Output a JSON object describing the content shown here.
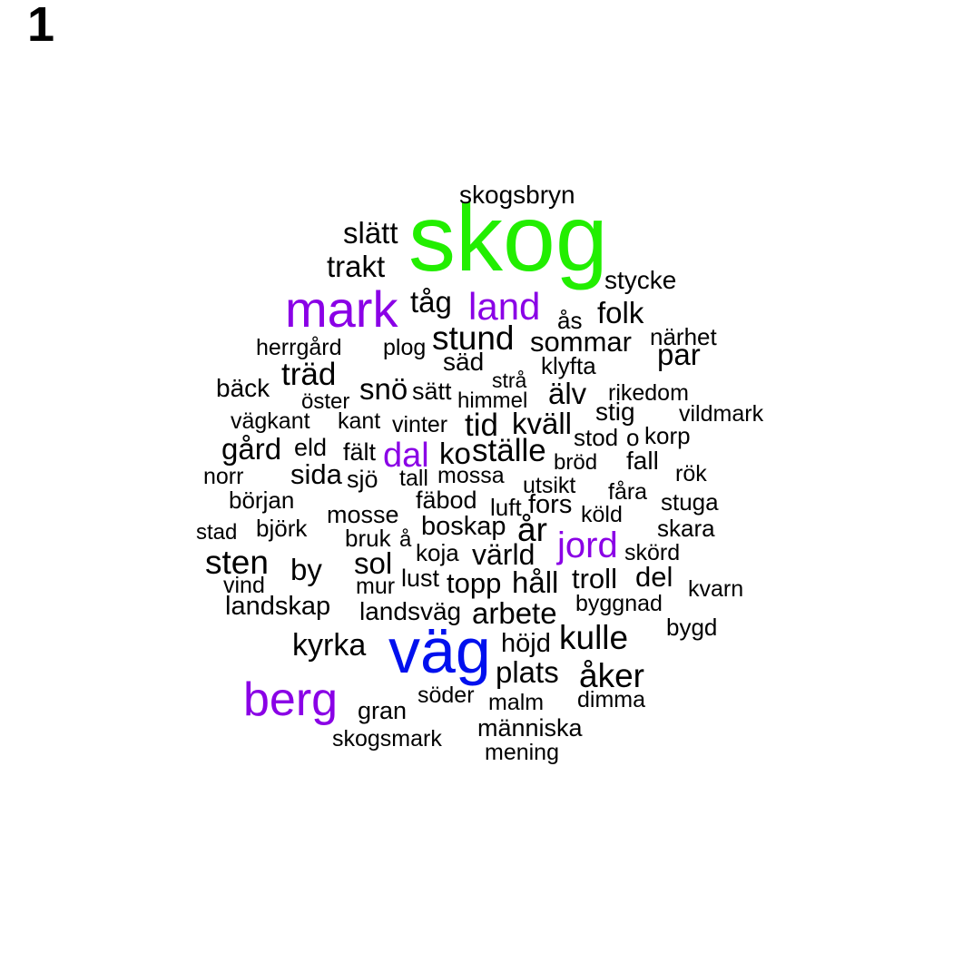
{
  "panel_label": "1",
  "colors": {
    "default": "#000000",
    "green": "#22ee00",
    "purple": "#8a00e6",
    "blue": "#0010ee"
  },
  "words": [
    {
      "text": "skog",
      "weight": 10,
      "color": "green"
    },
    {
      "text": "väg",
      "weight": 8,
      "color": "blue"
    },
    {
      "text": "mark",
      "weight": 6,
      "color": "purple"
    },
    {
      "text": "berg",
      "weight": 6,
      "color": "purple"
    },
    {
      "text": "land",
      "weight": 5,
      "color": "purple"
    },
    {
      "text": "jord",
      "weight": 5,
      "color": "purple"
    },
    {
      "text": "dal",
      "weight": 5,
      "color": "purple"
    },
    {
      "text": "skogsbryn",
      "weight": 2
    },
    {
      "text": "slätt",
      "weight": 3
    },
    {
      "text": "trakt",
      "weight": 3
    },
    {
      "text": "stycke",
      "weight": 2
    },
    {
      "text": "tåg",
      "weight": 3
    },
    {
      "text": "folk",
      "weight": 3
    },
    {
      "text": "ås",
      "weight": 2
    },
    {
      "text": "stund",
      "weight": 3
    },
    {
      "text": "sommar",
      "weight": 3
    },
    {
      "text": "närhet",
      "weight": 2
    },
    {
      "text": "herrgård",
      "weight": 2
    },
    {
      "text": "plog",
      "weight": 2
    },
    {
      "text": "säd",
      "weight": 2
    },
    {
      "text": "par",
      "weight": 3
    },
    {
      "text": "träd",
      "weight": 3
    },
    {
      "text": "klyfta",
      "weight": 2
    },
    {
      "text": "bäck",
      "weight": 2
    },
    {
      "text": "strå",
      "weight": 2
    },
    {
      "text": "snö",
      "weight": 3
    },
    {
      "text": "sätt",
      "weight": 2
    },
    {
      "text": "älv",
      "weight": 3
    },
    {
      "text": "rikedom",
      "weight": 2
    },
    {
      "text": "öster",
      "weight": 2
    },
    {
      "text": "himmel",
      "weight": 2
    },
    {
      "text": "stig",
      "weight": 2
    },
    {
      "text": "vildmark",
      "weight": 2
    },
    {
      "text": "vägkant",
      "weight": 2
    },
    {
      "text": "kant",
      "weight": 2
    },
    {
      "text": "vinter",
      "weight": 2
    },
    {
      "text": "tid",
      "weight": 3
    },
    {
      "text": "kväll",
      "weight": 3
    },
    {
      "text": "stod",
      "weight": 2
    },
    {
      "text": "o",
      "weight": 2
    },
    {
      "text": "korp",
      "weight": 2
    },
    {
      "text": "gård",
      "weight": 3
    },
    {
      "text": "eld",
      "weight": 2
    },
    {
      "text": "fält",
      "weight": 2
    },
    {
      "text": "ko",
      "weight": 3
    },
    {
      "text": "ställe",
      "weight": 3
    },
    {
      "text": "bröd",
      "weight": 2
    },
    {
      "text": "fall",
      "weight": 2
    },
    {
      "text": "norr",
      "weight": 2
    },
    {
      "text": "sida",
      "weight": 3
    },
    {
      "text": "sjö",
      "weight": 2
    },
    {
      "text": "tall",
      "weight": 2
    },
    {
      "text": "mossa",
      "weight": 2
    },
    {
      "text": "utsikt",
      "weight": 2
    },
    {
      "text": "rök",
      "weight": 2
    },
    {
      "text": "början",
      "weight": 2
    },
    {
      "text": "fäbod",
      "weight": 2
    },
    {
      "text": "fåra",
      "weight": 2
    },
    {
      "text": "luft",
      "weight": 2
    },
    {
      "text": "fors",
      "weight": 2
    },
    {
      "text": "stuga",
      "weight": 2
    },
    {
      "text": "mosse",
      "weight": 2
    },
    {
      "text": "köld",
      "weight": 2
    },
    {
      "text": "stad",
      "weight": 2
    },
    {
      "text": "björk",
      "weight": 2
    },
    {
      "text": "boskap",
      "weight": 2
    },
    {
      "text": "år",
      "weight": 3
    },
    {
      "text": "skara",
      "weight": 2
    },
    {
      "text": "bruk",
      "weight": 2
    },
    {
      "text": "å",
      "weight": 2
    },
    {
      "text": "skörd",
      "weight": 2
    },
    {
      "text": "sten",
      "weight": 3
    },
    {
      "text": "koja",
      "weight": 2
    },
    {
      "text": "värld",
      "weight": 3
    },
    {
      "text": "sol",
      "weight": 3
    },
    {
      "text": "by",
      "weight": 3
    },
    {
      "text": "del",
      "weight": 3
    },
    {
      "text": "lust",
      "weight": 2
    },
    {
      "text": "troll",
      "weight": 3
    },
    {
      "text": "vind",
      "weight": 2
    },
    {
      "text": "mur",
      "weight": 2
    },
    {
      "text": "topp",
      "weight": 3
    },
    {
      "text": "håll",
      "weight": 3
    },
    {
      "text": "kvarn",
      "weight": 2
    },
    {
      "text": "byggnad",
      "weight": 2
    },
    {
      "text": "landskap",
      "weight": 2
    },
    {
      "text": "landsväg",
      "weight": 2
    },
    {
      "text": "arbete",
      "weight": 3
    },
    {
      "text": "bygd",
      "weight": 2
    },
    {
      "text": "kulle",
      "weight": 3
    },
    {
      "text": "kyrka",
      "weight": 3
    },
    {
      "text": "höjd",
      "weight": 2
    },
    {
      "text": "plats",
      "weight": 3
    },
    {
      "text": "åker",
      "weight": 3
    },
    {
      "text": "söder",
      "weight": 2
    },
    {
      "text": "gran",
      "weight": 2
    },
    {
      "text": "malm",
      "weight": 2
    },
    {
      "text": "dimma",
      "weight": 2
    },
    {
      "text": "människa",
      "weight": 2
    },
    {
      "text": "skogsmark",
      "weight": 2
    },
    {
      "text": "mening",
      "weight": 2
    }
  ]
}
